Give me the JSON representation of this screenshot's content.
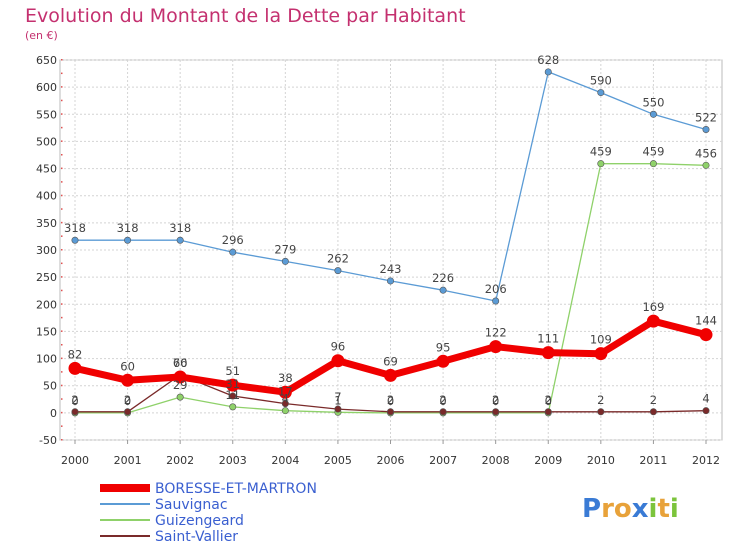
{
  "title": "Evolution du Montant de la Dette par Habitant",
  "subtitle": "(en €)",
  "logo": {
    "letters": [
      "P",
      "r",
      "o",
      "x",
      "i",
      "t",
      "i"
    ],
    "colors": [
      "#3a7bd5",
      "#e8a23a",
      "#e8a23a",
      "#3a7bd5",
      "#7cc43c",
      "#e8a23a",
      "#7cc43c"
    ]
  },
  "chart_data": {
    "type": "line",
    "categories": [
      "2000",
      "2001",
      "2002",
      "2003",
      "2004",
      "2005",
      "2006",
      "2007",
      "2008",
      "2009",
      "2010",
      "2011",
      "2012"
    ],
    "ylim": [
      -50,
      650
    ],
    "yticks": [
      -50,
      0,
      50,
      100,
      150,
      200,
      250,
      300,
      350,
      400,
      450,
      500,
      550,
      600,
      650
    ],
    "grid": true,
    "legend_position": "bottom-left",
    "series": [
      {
        "name": "Sauvignac",
        "color": "#5b9bd5",
        "width": 1.3,
        "values": [
          318,
          318,
          318,
          296,
          279,
          262,
          243,
          226,
          206,
          628,
          590,
          550,
          522
        ]
      },
      {
        "name": "Guizengeard",
        "color": "#8fd16a",
        "width": 1.3,
        "values": [
          0,
          0,
          29,
          11,
          4,
          1,
          0,
          0,
          0,
          0,
          459,
          459,
          456
        ]
      },
      {
        "name": "Saint-Vallier",
        "color": "#7a2a2a",
        "width": 1.3,
        "values": [
          2,
          2,
          70,
          31,
          17,
          7,
          2,
          2,
          2,
          2,
          2,
          2,
          4
        ]
      },
      {
        "name": "BORESSE-ET-MARTRON",
        "color": "#f00000",
        "width": 7,
        "values": [
          82,
          60,
          66,
          51,
          38,
          96,
          69,
          95,
          122,
          111,
          109,
          169,
          144
        ]
      }
    ],
    "legend_order": [
      "BORESSE-ET-MARTRON",
      "Sauvignac",
      "Guizengeard",
      "Saint-Vallier"
    ]
  }
}
